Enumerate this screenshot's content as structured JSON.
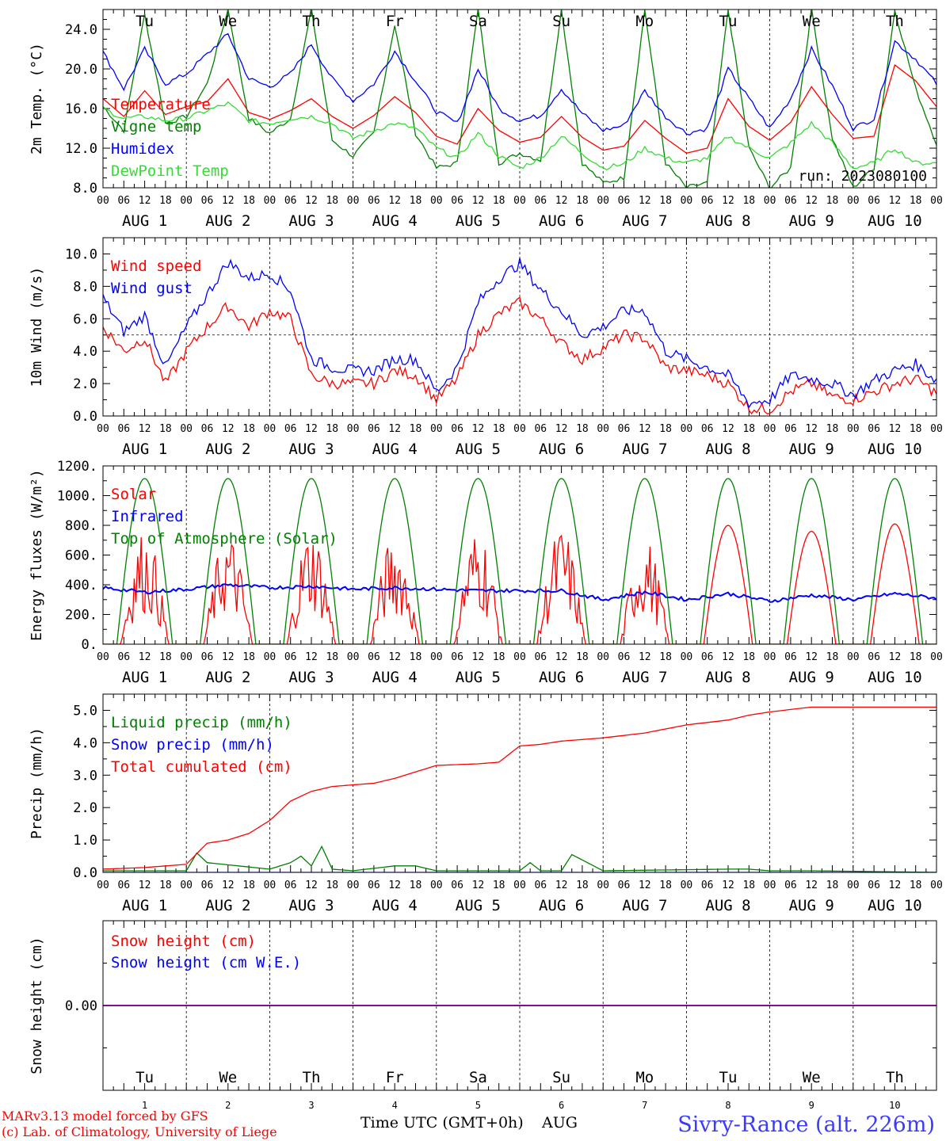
{
  "colors": {
    "red": "#ff0000",
    "green": "#008000",
    "blue": "#0000ff",
    "lightgreen": "#33dd33",
    "purple": "#800080",
    "station": "#3a3aff"
  },
  "days": {
    "weekdays": [
      "Tu",
      "We",
      "Th",
      "Fr",
      "Sa",
      "Su",
      "Mo",
      "Tu",
      "We",
      "Th"
    ],
    "weekday_colors": [
      "black",
      "black",
      "black",
      "black",
      "red",
      "red",
      "black",
      "black",
      "black",
      "black"
    ],
    "date_labels": [
      "AUG  1",
      "AUG  2",
      "AUG  3",
      "AUG  4",
      "AUG  5",
      "AUG  6",
      "AUG  7",
      "AUG  8",
      "AUG  9",
      "AUG 10"
    ],
    "day_numbers": [
      "1",
      "2",
      "3",
      "4",
      "5",
      "6",
      "7",
      "8",
      "9",
      "10"
    ],
    "hour_labels": [
      "00",
      "06",
      "12",
      "18"
    ],
    "end_hour_label": "00"
  },
  "footer": {
    "model": "MARv3.13 model forced by GFS",
    "lab": "(c) Lab. of Climatology, University of Liege",
    "time_axis": "Time UTC (GMT+0h)",
    "month": "AUG",
    "station": "Sivry-Rance (alt. 226m)"
  },
  "chart_data": [
    {
      "id": "temperature",
      "type": "line",
      "ylabel": "2m Temp. (°C)",
      "ylim": [
        8,
        26
      ],
      "yticks": [
        8,
        12,
        16,
        20,
        24
      ],
      "ytick_labels": [
        "8.0",
        "12.0",
        "16.0",
        "20.0",
        "24.0"
      ],
      "annotation": "run: 2023080100",
      "x_unit": "hours since 2023-08-01 00 UTC",
      "series": [
        {
          "name": "Temperature",
          "color": "red",
          "x": [
            0,
            6,
            12,
            18,
            24,
            30,
            36,
            42,
            48,
            54,
            60,
            66,
            72,
            78,
            84,
            90,
            96,
            102,
            108,
            114,
            120,
            126,
            132,
            138,
            144,
            150,
            156,
            162,
            168,
            174,
            180,
            186,
            192,
            198,
            204,
            210,
            216,
            222,
            228,
            234,
            240
          ],
          "y": [
            17.0,
            15.2,
            17.8,
            15.4,
            16.2,
            16.7,
            19.0,
            15.6,
            14.9,
            15.8,
            17.0,
            15.2,
            14.0,
            15.3,
            17.2,
            15.6,
            13.2,
            12.4,
            16.0,
            13.8,
            12.6,
            13.1,
            15.2,
            13.1,
            11.8,
            12.2,
            14.8,
            13.0,
            11.5,
            12.0,
            17.0,
            14.2,
            12.8,
            14.6,
            18.2,
            15.4,
            13.0,
            13.2,
            20.4,
            18.8,
            16.2
          ]
        },
        {
          "name": "Vigne temp",
          "color": "green",
          "x": [
            0,
            6,
            12,
            18,
            24,
            30,
            36,
            42,
            48,
            54,
            60,
            66,
            72,
            78,
            84,
            90,
            96,
            102,
            108,
            114,
            120,
            126,
            132,
            138,
            144,
            150,
            156,
            162,
            168,
            174,
            180,
            186,
            192,
            198,
            204,
            210,
            216,
            222,
            228,
            234,
            240
          ],
          "y": [
            16.2,
            13.8,
            25.5,
            14.5,
            15.2,
            18.5,
            26.0,
            15.0,
            13.5,
            15.0,
            26.0,
            12.8,
            11.2,
            13.5,
            24.5,
            13.5,
            10.0,
            10.5,
            26.0,
            10.5,
            11.5,
            10.8,
            26.0,
            10.5,
            8.5,
            9.0,
            26.0,
            10.5,
            8.0,
            8.5,
            26.0,
            12.0,
            8.0,
            10.0,
            26.0,
            13.0,
            8.0,
            10.0,
            26.0,
            18.0,
            12.5
          ]
        },
        {
          "name": "Humidex",
          "color": "blue",
          "x": [
            0,
            6,
            12,
            18,
            24,
            30,
            36,
            42,
            48,
            54,
            60,
            66,
            72,
            78,
            84,
            90,
            96,
            102,
            108,
            114,
            120,
            126,
            132,
            138,
            144,
            150,
            156,
            162,
            168,
            174,
            180,
            186,
            192,
            198,
            204,
            210,
            216,
            222,
            228,
            234,
            240
          ],
          "y": [
            21.7,
            18.0,
            22.0,
            18.5,
            19.5,
            21.5,
            23.5,
            19.0,
            18.2,
            19.5,
            22.5,
            19.0,
            16.8,
            18.5,
            21.8,
            18.8,
            15.7,
            14.5,
            20.0,
            16.0,
            14.8,
            15.3,
            18.0,
            15.5,
            13.8,
            14.3,
            17.8,
            15.2,
            13.5,
            14.0,
            20.0,
            17.0,
            14.0,
            17.0,
            22.0,
            18.3,
            14.0,
            15.0,
            22.8,
            21.0,
            18.5
          ]
        },
        {
          "name": "DewPoint Temp",
          "color": "lightgreen",
          "x": [
            0,
            6,
            12,
            18,
            24,
            30,
            36,
            42,
            48,
            54,
            60,
            66,
            72,
            78,
            84,
            90,
            96,
            102,
            108,
            114,
            120,
            126,
            132,
            138,
            144,
            150,
            156,
            162,
            168,
            174,
            180,
            186,
            192,
            198,
            204,
            210,
            216,
            222,
            228,
            234,
            240
          ],
          "y": [
            16.0,
            15.0,
            15.2,
            14.8,
            15.0,
            15.8,
            16.5,
            14.8,
            14.5,
            15.0,
            15.2,
            14.5,
            13.0,
            13.8,
            14.5,
            14.0,
            12.0,
            11.0,
            13.5,
            11.2,
            10.0,
            11.0,
            13.2,
            11.5,
            10.0,
            10.4,
            12.0,
            11.0,
            10.5,
            11.0,
            13.2,
            12.0,
            11.0,
            12.5,
            14.5,
            12.5,
            10.0,
            10.5,
            12.0,
            10.5,
            10.5
          ]
        }
      ]
    },
    {
      "id": "wind",
      "type": "line",
      "ylabel": "10m Wind (m/s)",
      "ylim": [
        0,
        11
      ],
      "yticks": [
        0,
        2,
        4,
        6,
        8,
        10
      ],
      "ytick_labels": [
        "0.0",
        "2.0",
        "4.0",
        "6.0",
        "8.0",
        "10.0"
      ],
      "hline": 5,
      "x_unit": "hours since 2023-08-01 00 UTC",
      "series": [
        {
          "name": "Wind speed",
          "color": "red",
          "x": [
            0,
            6,
            12,
            18,
            24,
            30,
            36,
            42,
            48,
            54,
            60,
            66,
            72,
            78,
            84,
            90,
            96,
            102,
            108,
            114,
            120,
            126,
            132,
            138,
            144,
            150,
            156,
            162,
            168,
            174,
            180,
            186,
            192,
            198,
            204,
            210,
            216,
            222,
            228,
            234,
            240
          ],
          "y": [
            5.5,
            4.0,
            4.8,
            2.0,
            4.0,
            5.5,
            6.8,
            5.5,
            6.5,
            6.0,
            2.5,
            2.0,
            2.0,
            2.0,
            2.8,
            2.5,
            1.0,
            2.3,
            5.0,
            6.3,
            7.0,
            6.0,
            4.5,
            3.5,
            4.2,
            5.0,
            4.8,
            3.0,
            2.8,
            2.5,
            2.0,
            0.5,
            0.4,
            1.5,
            2.0,
            1.2,
            1.0,
            1.5,
            2.0,
            2.3,
            1.4
          ]
        },
        {
          "name": "Wind gust",
          "color": "blue",
          "x": [
            0,
            6,
            12,
            18,
            24,
            30,
            36,
            42,
            48,
            54,
            60,
            66,
            72,
            78,
            84,
            90,
            96,
            102,
            108,
            114,
            120,
            126,
            132,
            138,
            144,
            150,
            156,
            162,
            168,
            174,
            180,
            186,
            192,
            198,
            204,
            210,
            216,
            222,
            228,
            234,
            240
          ],
          "y": [
            7.3,
            5.2,
            6.2,
            3.0,
            5.5,
            7.5,
            9.5,
            8.5,
            8.8,
            7.8,
            3.5,
            3.0,
            2.8,
            2.8,
            3.5,
            3.5,
            1.5,
            3.0,
            7.0,
            8.5,
            9.4,
            7.8,
            6.5,
            5.0,
            5.5,
            6.5,
            6.5,
            4.0,
            3.5,
            3.0,
            2.5,
            0.8,
            1.0,
            2.5,
            2.3,
            2.0,
            1.3,
            2.2,
            2.8,
            3.2,
            2.2
          ]
        }
      ]
    },
    {
      "id": "energy",
      "type": "line",
      "ylabel": "Energy fluxes (W/m²)",
      "ylim": [
        0,
        1200
      ],
      "yticks": [
        0,
        200,
        400,
        600,
        800,
        1000,
        1200
      ],
      "ytick_labels": [
        "0.",
        "200.",
        "400.",
        "600.",
        "800.",
        "1000.",
        "1200."
      ],
      "series": [
        {
          "name": "Solar",
          "color": "red",
          "day_peaks": [
            780,
            760,
            800,
            750,
            800,
            800,
            730,
            800,
            760,
            810
          ]
        },
        {
          "name": "Infrared",
          "color": "blue",
          "x": [
            0,
            12,
            24,
            36,
            48,
            60,
            72,
            84,
            96,
            108,
            120,
            132,
            144,
            156,
            168,
            180,
            192,
            204,
            216,
            228,
            240
          ],
          "y": [
            380,
            350,
            370,
            400,
            380,
            390,
            370,
            380,
            370,
            360,
            360,
            360,
            300,
            350,
            300,
            340,
            290,
            330,
            300,
            340,
            310
          ]
        },
        {
          "name": "Top of Atmosphere (Solar)",
          "color": "green",
          "peak": 1115,
          "sunrise_h": 4,
          "sunset_h": 20
        }
      ]
    },
    {
      "id": "precip",
      "type": "line",
      "ylabel": "Precip (mm/h)",
      "ylim": [
        0,
        5.5
      ],
      "yticks": [
        0,
        1,
        2,
        3,
        4,
        5
      ],
      "ytick_labels": [
        "0.0",
        "1.0",
        "2.0",
        "3.0",
        "4.0",
        "5.0"
      ],
      "series": [
        {
          "name": "Liquid precip (mm/h)",
          "color": "green",
          "x": [
            0,
            24,
            27,
            30,
            48,
            54,
            57,
            60,
            63,
            66,
            72,
            84,
            90,
            96,
            120,
            123,
            126,
            132,
            135,
            144,
            180,
            186,
            192,
            204,
            240
          ],
          "y": [
            0.05,
            0.05,
            0.6,
            0.3,
            0.1,
            0.3,
            0.5,
            0.2,
            0.8,
            0.1,
            0.05,
            0.2,
            0.2,
            0.05,
            0.05,
            0.3,
            0.05,
            0.05,
            0.55,
            0.05,
            0.1,
            0.1,
            0.05,
            0.05,
            0.0
          ]
        },
        {
          "name": "Snow precip (mm/h)",
          "color": "blue",
          "x": [
            0,
            240
          ],
          "y": [
            0,
            0
          ]
        },
        {
          "name": "Total cumulated (cm)",
          "color": "red",
          "x": [
            0,
            12,
            24,
            30,
            36,
            42,
            48,
            54,
            60,
            66,
            72,
            78,
            84,
            90,
            96,
            108,
            114,
            120,
            126,
            132,
            144,
            156,
            168,
            180,
            186,
            192,
            204,
            216,
            240
          ],
          "y": [
            0.1,
            0.15,
            0.25,
            0.9,
            1.0,
            1.2,
            1.6,
            2.2,
            2.5,
            2.65,
            2.7,
            2.75,
            2.9,
            3.1,
            3.3,
            3.35,
            3.4,
            3.9,
            3.95,
            4.05,
            4.15,
            4.3,
            4.55,
            4.7,
            4.85,
            4.95,
            5.1,
            5.1,
            5.1
          ]
        }
      ]
    },
    {
      "id": "snow",
      "type": "line",
      "ylabel": "Snow height (cm)",
      "ylim": [
        -1,
        1
      ],
      "yticks": [
        0
      ],
      "ytick_labels": [
        "0.00"
      ],
      "series": [
        {
          "name": "Snow height (cm)",
          "color": "red",
          "x": [
            0,
            240
          ],
          "y": [
            0,
            0
          ]
        },
        {
          "name": "Snow height (cm W.E.)",
          "color": "blue",
          "x": [
            0,
            240
          ],
          "y": [
            0,
            0
          ]
        }
      ]
    }
  ]
}
